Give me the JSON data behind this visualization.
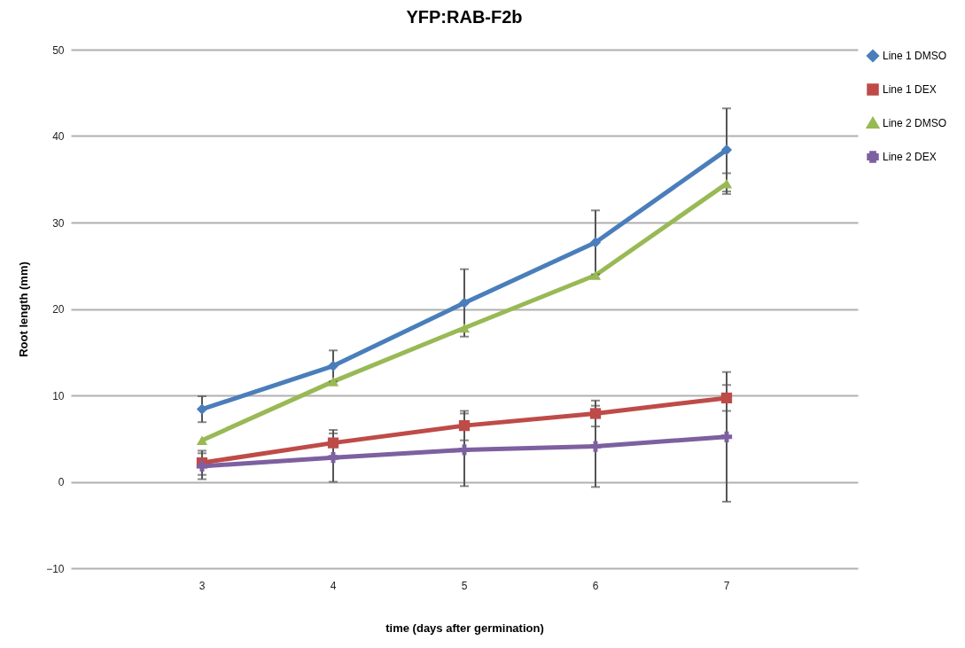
{
  "chart_data": {
    "type": "line",
    "title": "YFP:RAB-F2b",
    "xlabel": "time (days after germination)",
    "ylabel": "Root length (mm)",
    "categories": [
      "3",
      "4",
      "5",
      "6",
      "7"
    ],
    "series": [
      {
        "name": "Line 1 DMSO",
        "color": "#4a7ebb",
        "marker": "diamond",
        "values": [
          8.4,
          13.4,
          20.7,
          27.7,
          38.4
        ],
        "errors": [
          1.5,
          1.8,
          3.9,
          3.7,
          4.8
        ]
      },
      {
        "name": "Line 1 DEX",
        "color": "#be4b48",
        "marker": "square",
        "values": [
          2.2,
          4.5,
          6.5,
          7.9,
          9.7
        ],
        "errors": [
          1.4,
          1.5,
          1.7,
          1.5,
          1.5
        ]
      },
      {
        "name": "Line 2 DMSO",
        "color": "#98b954",
        "marker": "triangle",
        "values": [
          4.8,
          11.6,
          17.8,
          23.9,
          34.5
        ],
        "errors": [
          null,
          null,
          null,
          null,
          1.2
        ]
      },
      {
        "name": "Line 2 DEX",
        "color": "#7d60a0",
        "marker": "cross",
        "values": [
          1.8,
          2.8,
          3.7,
          4.1,
          5.2
        ],
        "errors": [
          1.5,
          2.8,
          4.2,
          4.7,
          7.5
        ]
      }
    ],
    "ylim": [
      -10,
      50
    ],
    "yticks": [
      -10,
      0,
      10,
      20,
      30,
      40,
      50
    ],
    "grid": "y",
    "legend": "right",
    "line_style": "solid"
  }
}
